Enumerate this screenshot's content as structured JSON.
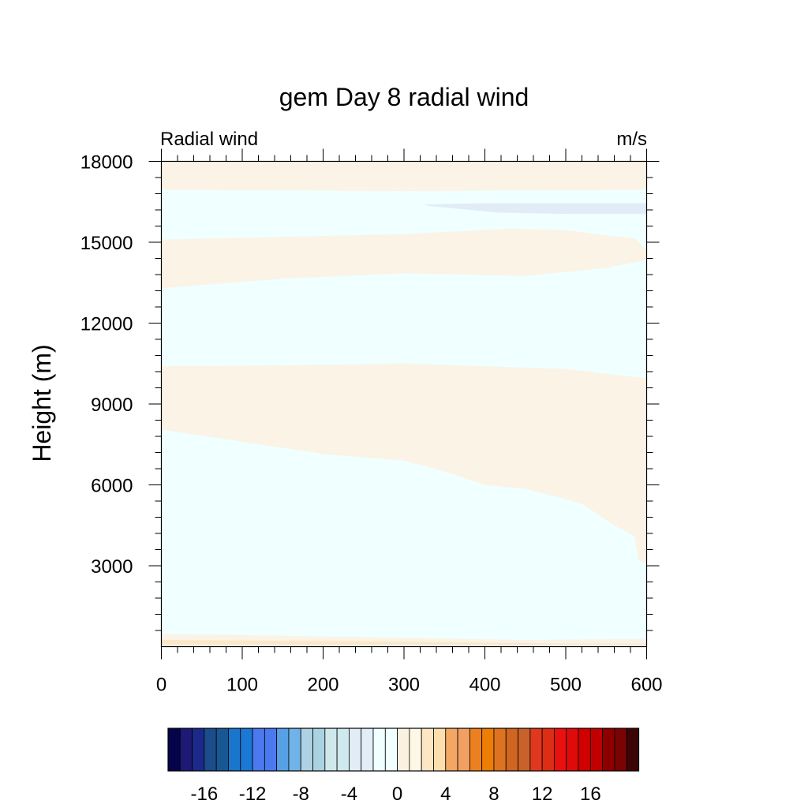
{
  "chart_data": {
    "type": "contour",
    "title": "gem Day 8 radial wind",
    "left_string": "Radial wind",
    "right_string": "m/s",
    "ylabel": "Height (m)",
    "xlabel": "",
    "xlim": [
      0,
      600
    ],
    "ylim": [
      0,
      18000
    ],
    "x_ticks": [
      0,
      100,
      200,
      300,
      400,
      500,
      600
    ],
    "x_tick_labels": [
      "0",
      "100",
      "200",
      "300",
      "400",
      "500",
      "600"
    ],
    "y_ticks": [
      3000,
      6000,
      9000,
      12000,
      15000,
      18000
    ],
    "y_tick_labels": [
      "3000",
      "6000",
      "9000",
      "12000",
      "15000",
      "18000"
    ],
    "background_color": "#f0ffff",
    "regions": [
      {
        "name": "positive-band-top",
        "color": "#fbf3e6",
        "polygon": [
          [
            0,
            18000
          ],
          [
            600,
            18000
          ],
          [
            600,
            16950
          ],
          [
            300,
            16900
          ],
          [
            0,
            16950
          ]
        ]
      },
      {
        "name": "negative-patch-upper",
        "color": "#e1ecf7",
        "polygon": [
          [
            325,
            16400
          ],
          [
            400,
            16450
          ],
          [
            600,
            16450
          ],
          [
            600,
            16050
          ],
          [
            500,
            16050
          ],
          [
            415,
            16100
          ],
          [
            330,
            16350
          ]
        ]
      },
      {
        "name": "positive-band-upper",
        "color": "#fbf3e6",
        "polygon": [
          [
            0,
            15100
          ],
          [
            150,
            15200
          ],
          [
            300,
            15300
          ],
          [
            430,
            15500
          ],
          [
            500,
            15450
          ],
          [
            550,
            15250
          ],
          [
            585,
            15150
          ],
          [
            600,
            14700
          ],
          [
            600,
            14350
          ],
          [
            550,
            14050
          ],
          [
            450,
            13750
          ],
          [
            300,
            13850
          ],
          [
            150,
            13650
          ],
          [
            0,
            13300
          ]
        ]
      },
      {
        "name": "positive-band-middle",
        "color": "#fbf3e6",
        "polygon": [
          [
            0,
            10400
          ],
          [
            200,
            10450
          ],
          [
            300,
            10500
          ],
          [
            500,
            10300
          ],
          [
            600,
            9950
          ],
          [
            600,
            3100
          ],
          [
            590,
            3200
          ],
          [
            585,
            4100
          ],
          [
            560,
            4500
          ],
          [
            520,
            5300
          ],
          [
            490,
            5550
          ],
          [
            450,
            5850
          ],
          [
            400,
            6000
          ],
          [
            350,
            6500
          ],
          [
            300,
            6900
          ],
          [
            200,
            7150
          ],
          [
            100,
            7600
          ],
          [
            0,
            8050
          ]
        ]
      },
      {
        "name": "positive-band-bottom",
        "color": "#fbf3e6",
        "polygon": [
          [
            0,
            470
          ],
          [
            300,
            330
          ],
          [
            450,
            250
          ],
          [
            600,
            290
          ],
          [
            600,
            60
          ],
          [
            0,
            60
          ]
        ]
      },
      {
        "name": "positive-strip-surface",
        "color": "#fde7c7",
        "polygon": [
          [
            0,
            250
          ],
          [
            300,
            180
          ],
          [
            500,
            120
          ],
          [
            600,
            110
          ],
          [
            600,
            60
          ],
          [
            0,
            60
          ]
        ]
      }
    ],
    "colorbar": {
      "levels": [
        -18,
        -17,
        -16,
        -15,
        -14,
        -13,
        -12,
        -11,
        -10,
        -9,
        -8,
        -7,
        -6,
        -5,
        -4,
        -3,
        -2,
        -1,
        0,
        1,
        2,
        3,
        4,
        5,
        6,
        7,
        8,
        9,
        10,
        11,
        12,
        13,
        14,
        15,
        16,
        17,
        18
      ],
      "colors": [
        "#05044a",
        "#1c1a74",
        "#1b2a8a",
        "#1c4d8a",
        "#175893",
        "#1a75cc",
        "#1c78d5",
        "#4a79f0",
        "#4a79f0",
        "#58a0e6",
        "#6fb3e8",
        "#aed2e3",
        "#aad3e2",
        "#cfe8ec",
        "#cfeaee",
        "#e1ecf7",
        "#e3edf8",
        "#f0ffff",
        "#f0ffff",
        "#fbf1e1",
        "#fff7e6",
        "#fde6c4",
        "#fddfae",
        "#f4a763",
        "#f1a061",
        "#ec8020",
        "#ec7d05",
        "#dd7320",
        "#d06522",
        "#c8622a",
        "#e0381e",
        "#db2e15",
        "#e91010",
        "#df0a0a",
        "#d10000",
        "#c00000",
        "#8e0000",
        "#7a0303",
        "#3c0505"
      ],
      "tick_labels": [
        "-16",
        "-12",
        "-8",
        "-4",
        "0",
        "4",
        "8",
        "12",
        "16"
      ],
      "tick_values": [
        -16,
        -12,
        -8,
        -4,
        0,
        4,
        8,
        12,
        16
      ]
    }
  }
}
